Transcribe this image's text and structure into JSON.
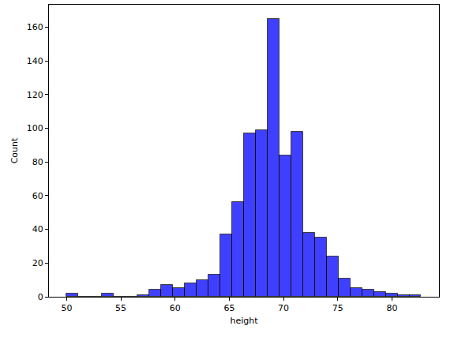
{
  "chart_data": {
    "type": "histogram",
    "x_label": "height",
    "y_label": "Count",
    "bins": [
      50,
      51.09,
      52.18,
      53.27,
      54.36,
      55.45,
      56.54,
      57.63,
      58.72,
      59.81,
      60.9,
      61.99,
      63.08,
      64.17,
      65.26,
      66.35,
      67.44,
      68.53,
      69.62,
      70.71,
      71.8,
      72.89,
      73.98,
      75.07,
      76.16,
      77.25,
      78.34,
      79.43,
      80.52,
      81.61,
      82.7
    ],
    "values": [
      2,
      0,
      0,
      2,
      0,
      0,
      1,
      4,
      7,
      5,
      8,
      10,
      13,
      37,
      56,
      97,
      99,
      165,
      84,
      98,
      38,
      35,
      24,
      11,
      5,
      4,
      3,
      2,
      1,
      1
    ],
    "color": "#0000ff",
    "xlim": [
      48.37,
      84.34
    ],
    "xticks": [
      50,
      55,
      60,
      65,
      70,
      75,
      80
    ],
    "ylim": [
      0,
      173.25
    ],
    "yticks": [
      0,
      20,
      40,
      60,
      80,
      100,
      120,
      140,
      160
    ],
    "grid": false
  }
}
